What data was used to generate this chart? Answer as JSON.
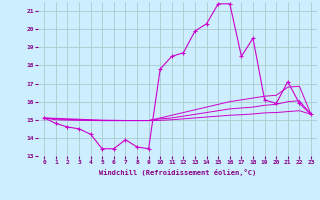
{
  "title": "",
  "xlabel": "Windchill (Refroidissement éolien,°C)",
  "ylabel": "",
  "bg_color": "#cceeff",
  "grid_color": "#aacccc",
  "line_color": "#cc00cc",
  "x": [
    0,
    1,
    2,
    3,
    4,
    5,
    6,
    7,
    8,
    9,
    10,
    11,
    12,
    13,
    14,
    15,
    16,
    17,
    18,
    19,
    20,
    21,
    22,
    23
  ],
  "y_main": [
    15.1,
    14.8,
    14.6,
    14.5,
    14.2,
    13.4,
    13.4,
    13.9,
    13.5,
    13.4,
    17.8,
    18.5,
    18.7,
    19.9,
    20.3,
    21.4,
    21.4,
    18.5,
    19.5,
    16.1,
    15.9,
    17.1,
    15.9,
    15.3
  ],
  "y_line1": [
    15.1,
    15.08,
    15.05,
    15.03,
    15.0,
    14.98,
    14.97,
    14.96,
    14.96,
    14.96,
    15.1,
    15.25,
    15.4,
    15.55,
    15.7,
    15.85,
    16.0,
    16.1,
    16.2,
    16.3,
    16.35,
    16.8,
    16.85,
    15.3
  ],
  "y_line2": [
    15.1,
    15.05,
    15.02,
    15.0,
    14.98,
    14.96,
    14.96,
    14.96,
    14.96,
    14.96,
    15.05,
    15.1,
    15.2,
    15.3,
    15.4,
    15.5,
    15.6,
    15.65,
    15.7,
    15.8,
    15.85,
    16.0,
    16.05,
    15.3
  ],
  "y_line3": [
    15.1,
    15.0,
    14.98,
    14.97,
    14.96,
    14.95,
    14.95,
    14.95,
    14.95,
    14.95,
    14.97,
    15.0,
    15.05,
    15.1,
    15.15,
    15.2,
    15.25,
    15.28,
    15.32,
    15.38,
    15.4,
    15.45,
    15.5,
    15.3
  ],
  "ylim": [
    13,
    21.5
  ],
  "xlim": [
    -0.5,
    23.5
  ],
  "yticks": [
    13,
    14,
    15,
    16,
    17,
    18,
    19,
    20,
    21
  ],
  "xticks": [
    0,
    1,
    2,
    3,
    4,
    5,
    6,
    7,
    8,
    9,
    10,
    11,
    12,
    13,
    14,
    15,
    16,
    17,
    18,
    19,
    20,
    21,
    22,
    23
  ],
  "tick_color": "#880088",
  "label_fontsize": 5,
  "tick_fontsize": 4.5
}
